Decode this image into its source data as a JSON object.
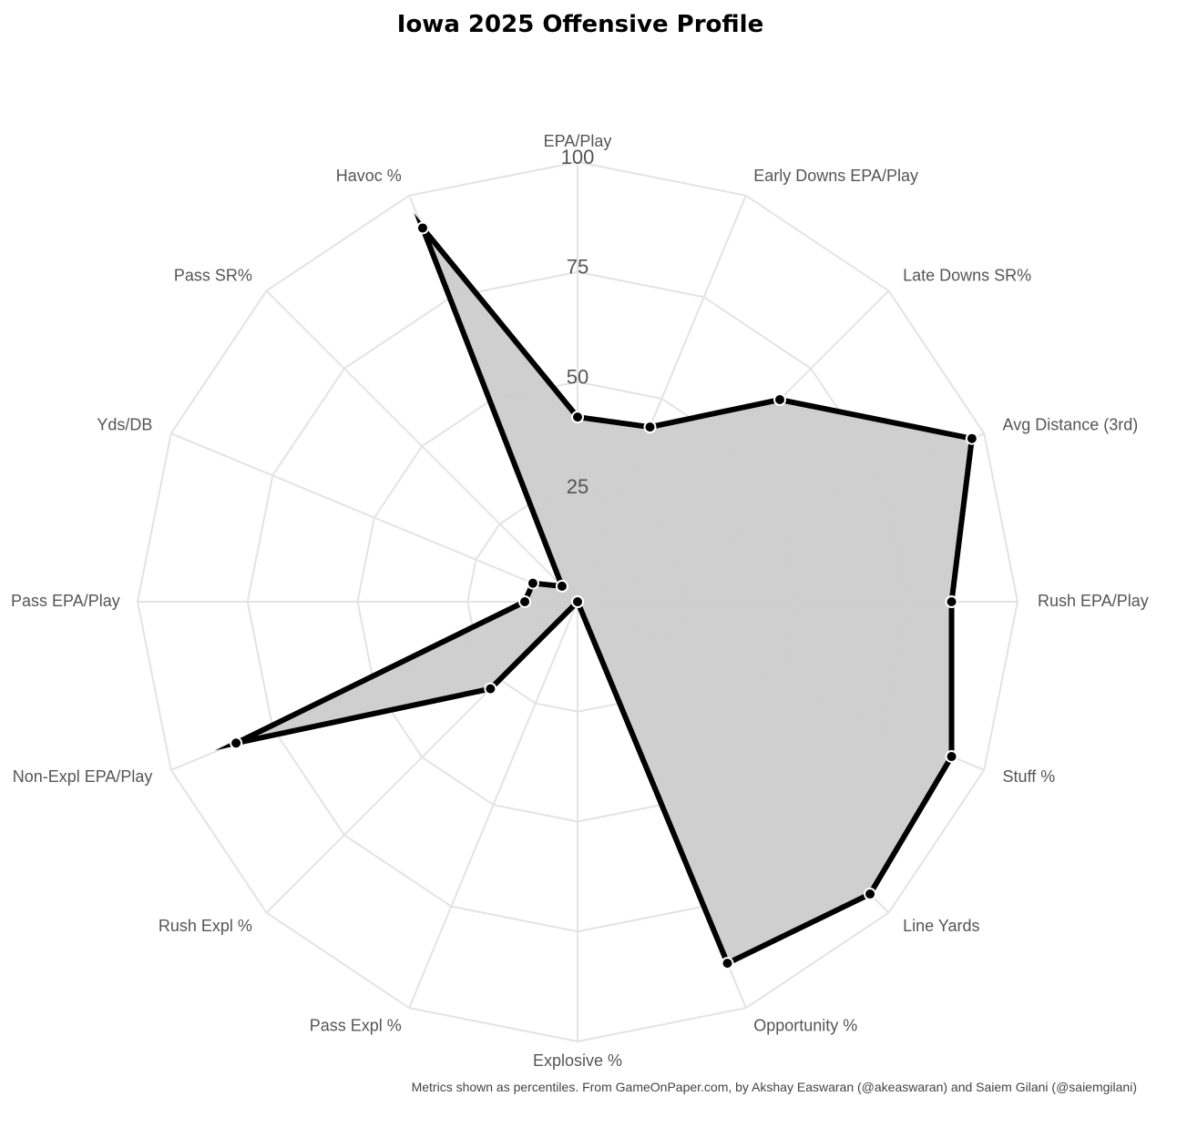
{
  "chart_data": {
    "type": "radar",
    "title": "Iowa 2025 Offensive Profile",
    "footnote": "Metrics shown as percentiles. From GameOnPaper.com, by Akshay Easwaran (@akeaswaran) and Saiem Gilani (@saiemgilani)",
    "rlim": [
      0,
      100
    ],
    "ticks": [
      "25",
      "50",
      "75",
      "100"
    ],
    "grid": true,
    "categories": [
      "EPA/Play",
      "Early Downs EPA/Play",
      "Late Downs SR%",
      "Avg Distance (3rd)",
      "Rush EPA/Play",
      "Stuff %",
      "Line Yards",
      "Opportunity %",
      "Explosive %",
      "Pass Expl %",
      "Rush Expl %",
      "Non-Expl EPA/Play",
      "Pass EPA/Play",
      "Yds/DB",
      "Pass SR%",
      "Havoc %"
    ],
    "values": [
      42,
      43,
      65,
      97,
      85,
      92,
      94,
      89,
      0,
      0,
      28,
      84,
      12,
      11,
      5,
      92
    ],
    "colors": {
      "fill": "#cccccc",
      "line": "#000000",
      "grid": "#e3e3e3",
      "marker": "#000000"
    }
  }
}
